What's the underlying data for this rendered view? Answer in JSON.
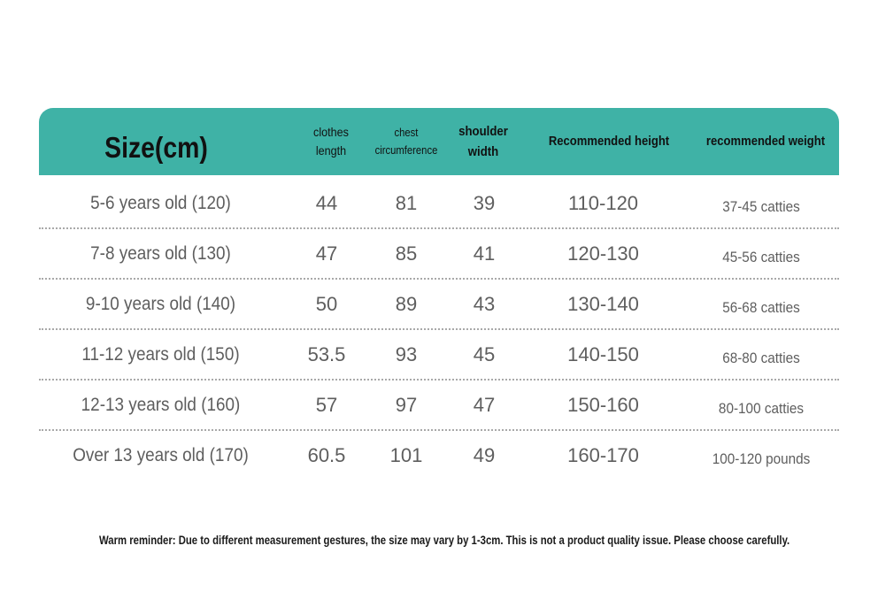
{
  "table": {
    "headers": {
      "size": "Size(cm)",
      "length_line1": "clothes",
      "length_line2": "length",
      "chest_line1": "chest",
      "chest_line2": "circumference",
      "shoulder_line1": "shoulder",
      "shoulder_line2": "width",
      "height": "Recommended height",
      "weight": "recommended weight"
    },
    "header_color": "#3fb2a6",
    "rows": [
      {
        "size": "5-6 years old (120)",
        "length": "44",
        "chest": "81",
        "shoulder": "39",
        "height": "110-120",
        "weight": "37-45 catties"
      },
      {
        "size": "7-8 years old (130)",
        "length": "47",
        "chest": "85",
        "shoulder": "41",
        "height": "120-130",
        "weight": "45-56 catties"
      },
      {
        "size": "9-10 years old (140)",
        "length": "50",
        "chest": "89",
        "shoulder": "43",
        "height": "130-140",
        "weight": "56-68 catties"
      },
      {
        "size": "11-12 years old (150)",
        "length": "53.5",
        "chest": "93",
        "shoulder": "45",
        "height": "140-150",
        "weight": "68-80 catties"
      },
      {
        "size": "12-13 years old (160)",
        "length": "57",
        "chest": "97",
        "shoulder": "47",
        "height": "150-160",
        "weight": "80-100 catties"
      },
      {
        "size": "Over 13 years old (170)",
        "length": "60.5",
        "chest": "101",
        "shoulder": "49",
        "height": "160-170",
        "weight": "100-120 pounds"
      }
    ]
  },
  "reminder": "Warm reminder: Due to different measurement gestures, the size may vary by 1-3cm. This is not a product quality issue. Please choose carefully."
}
